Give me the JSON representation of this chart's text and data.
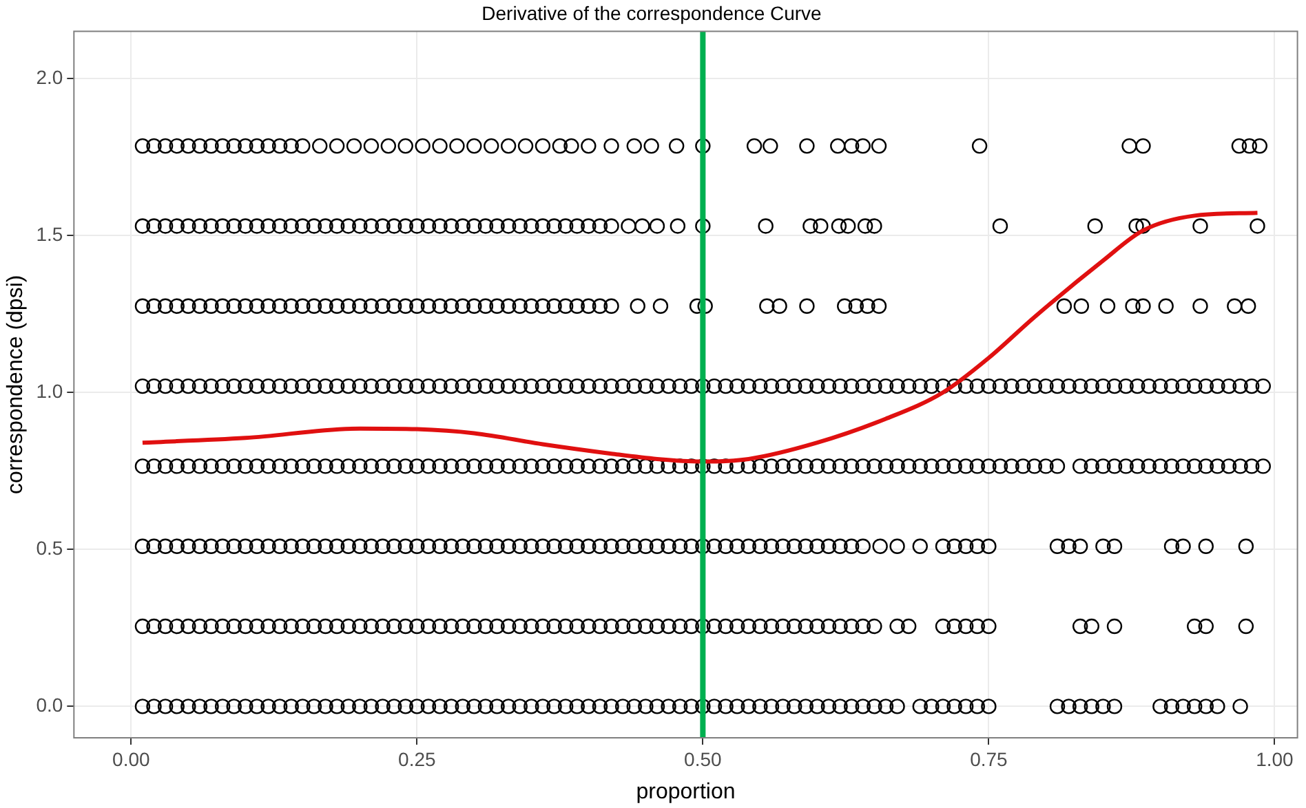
{
  "chart_data": {
    "type": "scatter",
    "title": "Derivative of the correspondence Curve",
    "xlabel": "proportion",
    "ylabel": "correspondence (dpsi)",
    "xlim": [
      -0.05,
      1.02
    ],
    "ylim": [
      -0.1,
      2.15
    ],
    "xticks": [
      {
        "value": 0,
        "label": "0.00"
      },
      0.25,
      {
        "value": 0.5,
        "label": "0.50"
      },
      0.75,
      {
        "value": 1,
        "label": "1.00"
      }
    ],
    "yticks": [
      {
        "value": 0,
        "label": "0.0"
      },
      0.5,
      {
        "value": 1,
        "label": "1.0"
      },
      1.5,
      {
        "value": 2,
        "label": "2.0"
      }
    ],
    "grid": true,
    "legend": false,
    "marker": "circle",
    "ref_lines": [
      {
        "axis": "x",
        "value": 0.5,
        "color": "#00b050"
      }
    ],
    "series": [
      {
        "color": "#000000",
        "x": [
          0.01,
          0.02,
          0.03,
          0.04,
          0.05,
          0.06,
          0.07,
          0.08,
          0.09,
          0.1,
          0.11,
          0.12,
          0.13,
          0.14,
          0.15,
          0.16,
          0.17,
          0.18,
          0.19,
          0.2,
          0.21,
          0.22,
          0.23,
          0.24,
          0.25,
          0.26,
          0.27,
          0.28,
          0.29,
          0.3,
          0.31,
          0.32,
          0.33,
          0.34,
          0.35,
          0.36,
          0.37,
          0.38,
          0.39,
          0.4,
          0.41,
          0.42,
          0.43,
          0.44,
          0.45,
          0.46,
          0.47,
          0.48,
          0.49,
          0.5,
          0.51,
          0.52,
          0.53,
          0.54,
          0.55,
          0.56,
          0.57,
          0.58,
          0.59,
          0.6,
          0.61,
          0.62,
          0.63,
          0.64,
          0.65,
          0.66,
          0.67,
          0.69,
          0.7,
          0.71,
          0.72,
          0.73,
          0.74,
          0.75,
          0.81,
          0.82,
          0.83,
          0.84,
          0.85,
          0.86,
          0.9,
          0.91,
          0.92,
          0.93,
          0.94,
          0.95,
          0.97
        ],
        "values": [
          0,
          0,
          0,
          0,
          0,
          0,
          0,
          0,
          0,
          0,
          0,
          0,
          0,
          0,
          0,
          0,
          0,
          0,
          0,
          0,
          0,
          0,
          0,
          0,
          0,
          0,
          0,
          0,
          0,
          0,
          0,
          0,
          0,
          0,
          0,
          0,
          0,
          0,
          0,
          0,
          0,
          0,
          0,
          0,
          0,
          0,
          0,
          0,
          0,
          0,
          0,
          0,
          0,
          0,
          0,
          0,
          0,
          0,
          0,
          0,
          0,
          0,
          0,
          0,
          0,
          0,
          0,
          0,
          0,
          0,
          0,
          0,
          0,
          0,
          0,
          0,
          0,
          0,
          0,
          0,
          0,
          0,
          0,
          0,
          0,
          0,
          0
        ]
      },
      {
        "color": "#000000",
        "x": [
          0.01,
          0.02,
          0.03,
          0.04,
          0.05,
          0.06,
          0.07,
          0.08,
          0.09,
          0.1,
          0.11,
          0.12,
          0.13,
          0.14,
          0.15,
          0.16,
          0.17,
          0.18,
          0.19,
          0.2,
          0.21,
          0.22,
          0.23,
          0.24,
          0.25,
          0.26,
          0.27,
          0.28,
          0.29,
          0.3,
          0.31,
          0.32,
          0.33,
          0.34,
          0.35,
          0.36,
          0.37,
          0.38,
          0.39,
          0.4,
          0.41,
          0.42,
          0.43,
          0.44,
          0.45,
          0.46,
          0.47,
          0.48,
          0.49,
          0.5,
          0.51,
          0.52,
          0.53,
          0.54,
          0.55,
          0.56,
          0.57,
          0.58,
          0.59,
          0.6,
          0.61,
          0.62,
          0.63,
          0.64,
          0.65,
          0.67,
          0.68,
          0.71,
          0.72,
          0.73,
          0.74,
          0.75,
          0.83,
          0.84,
          0.86,
          0.93,
          0.94,
          0.975
        ],
        "values": [
          0.255,
          0.255,
          0.255,
          0.255,
          0.255,
          0.255,
          0.255,
          0.255,
          0.255,
          0.255,
          0.255,
          0.255,
          0.255,
          0.255,
          0.255,
          0.255,
          0.255,
          0.255,
          0.255,
          0.255,
          0.255,
          0.255,
          0.255,
          0.255,
          0.255,
          0.255,
          0.255,
          0.255,
          0.255,
          0.255,
          0.255,
          0.255,
          0.255,
          0.255,
          0.255,
          0.255,
          0.255,
          0.255,
          0.255,
          0.255,
          0.255,
          0.255,
          0.255,
          0.255,
          0.255,
          0.255,
          0.255,
          0.255,
          0.255,
          0.255,
          0.255,
          0.255,
          0.255,
          0.255,
          0.255,
          0.255,
          0.255,
          0.255,
          0.255,
          0.255,
          0.255,
          0.255,
          0.255,
          0.255,
          0.255,
          0.255,
          0.255,
          0.255,
          0.255,
          0.255,
          0.255,
          0.255,
          0.255,
          0.255,
          0.255,
          0.255,
          0.255,
          0.255
        ]
      },
      {
        "color": "#000000",
        "x": [
          0.01,
          0.02,
          0.03,
          0.04,
          0.05,
          0.06,
          0.07,
          0.08,
          0.09,
          0.1,
          0.11,
          0.12,
          0.13,
          0.14,
          0.15,
          0.16,
          0.17,
          0.18,
          0.19,
          0.2,
          0.21,
          0.22,
          0.23,
          0.24,
          0.25,
          0.26,
          0.27,
          0.28,
          0.29,
          0.3,
          0.31,
          0.32,
          0.33,
          0.34,
          0.35,
          0.36,
          0.37,
          0.38,
          0.39,
          0.4,
          0.41,
          0.42,
          0.43,
          0.44,
          0.45,
          0.46,
          0.47,
          0.48,
          0.49,
          0.5,
          0.51,
          0.52,
          0.53,
          0.54,
          0.55,
          0.56,
          0.57,
          0.58,
          0.59,
          0.6,
          0.61,
          0.62,
          0.63,
          0.64,
          0.655,
          0.67,
          0.69,
          0.71,
          0.72,
          0.73,
          0.74,
          0.75,
          0.81,
          0.82,
          0.83,
          0.85,
          0.86,
          0.91,
          0.92,
          0.94,
          0.975
        ],
        "values": [
          0.51,
          0.51,
          0.51,
          0.51,
          0.51,
          0.51,
          0.51,
          0.51,
          0.51,
          0.51,
          0.51,
          0.51,
          0.51,
          0.51,
          0.51,
          0.51,
          0.51,
          0.51,
          0.51,
          0.51,
          0.51,
          0.51,
          0.51,
          0.51,
          0.51,
          0.51,
          0.51,
          0.51,
          0.51,
          0.51,
          0.51,
          0.51,
          0.51,
          0.51,
          0.51,
          0.51,
          0.51,
          0.51,
          0.51,
          0.51,
          0.51,
          0.51,
          0.51,
          0.51,
          0.51,
          0.51,
          0.51,
          0.51,
          0.51,
          0.51,
          0.51,
          0.51,
          0.51,
          0.51,
          0.51,
          0.51,
          0.51,
          0.51,
          0.51,
          0.51,
          0.51,
          0.51,
          0.51,
          0.51,
          0.51,
          0.51,
          0.51,
          0.51,
          0.51,
          0.51,
          0.51,
          0.51,
          0.51,
          0.51,
          0.51,
          0.51,
          0.51,
          0.51,
          0.51,
          0.51,
          0.51
        ]
      },
      {
        "color": "#000000",
        "x": [
          0.01,
          0.02,
          0.03,
          0.04,
          0.05,
          0.06,
          0.07,
          0.08,
          0.09,
          0.1,
          0.11,
          0.12,
          0.13,
          0.14,
          0.15,
          0.16,
          0.17,
          0.18,
          0.19,
          0.2,
          0.21,
          0.22,
          0.23,
          0.24,
          0.25,
          0.26,
          0.27,
          0.28,
          0.29,
          0.3,
          0.31,
          0.32,
          0.33,
          0.34,
          0.35,
          0.36,
          0.37,
          0.38,
          0.39,
          0.4,
          0.41,
          0.42,
          0.43,
          0.44,
          0.45,
          0.46,
          0.47,
          0.48,
          0.49,
          0.5,
          0.51,
          0.52,
          0.53,
          0.54,
          0.55,
          0.56,
          0.57,
          0.58,
          0.59,
          0.6,
          0.61,
          0.62,
          0.63,
          0.64,
          0.65,
          0.66,
          0.67,
          0.68,
          0.69,
          0.7,
          0.71,
          0.72,
          0.73,
          0.74,
          0.75,
          0.76,
          0.77,
          0.78,
          0.79,
          0.8,
          0.81,
          0.83,
          0.84,
          0.85,
          0.86,
          0.87,
          0.88,
          0.89,
          0.9,
          0.91,
          0.92,
          0.93,
          0.94,
          0.95,
          0.96,
          0.97,
          0.98,
          0.99
        ],
        "values": [
          0.765,
          0.765,
          0.765,
          0.765,
          0.765,
          0.765,
          0.765,
          0.765,
          0.765,
          0.765,
          0.765,
          0.765,
          0.765,
          0.765,
          0.765,
          0.765,
          0.765,
          0.765,
          0.765,
          0.765,
          0.765,
          0.765,
          0.765,
          0.765,
          0.765,
          0.765,
          0.765,
          0.765,
          0.765,
          0.765,
          0.765,
          0.765,
          0.765,
          0.765,
          0.765,
          0.765,
          0.765,
          0.765,
          0.765,
          0.765,
          0.765,
          0.765,
          0.765,
          0.765,
          0.765,
          0.765,
          0.765,
          0.765,
          0.765,
          0.765,
          0.765,
          0.765,
          0.765,
          0.765,
          0.765,
          0.765,
          0.765,
          0.765,
          0.765,
          0.765,
          0.765,
          0.765,
          0.765,
          0.765,
          0.765,
          0.765,
          0.765,
          0.765,
          0.765,
          0.765,
          0.765,
          0.765,
          0.765,
          0.765,
          0.765,
          0.765,
          0.765,
          0.765,
          0.765,
          0.765,
          0.765,
          0.765,
          0.765,
          0.765,
          0.765,
          0.765,
          0.765,
          0.765,
          0.765,
          0.765,
          0.765,
          0.765,
          0.765,
          0.765,
          0.765,
          0.765,
          0.765,
          0.765
        ]
      },
      {
        "color": "#000000",
        "x": [
          0.01,
          0.02,
          0.03,
          0.04,
          0.05,
          0.06,
          0.07,
          0.08,
          0.09,
          0.1,
          0.11,
          0.12,
          0.13,
          0.14,
          0.15,
          0.16,
          0.17,
          0.18,
          0.19,
          0.2,
          0.21,
          0.22,
          0.23,
          0.24,
          0.25,
          0.26,
          0.27,
          0.28,
          0.29,
          0.3,
          0.31,
          0.32,
          0.33,
          0.34,
          0.35,
          0.36,
          0.37,
          0.38,
          0.39,
          0.4,
          0.41,
          0.42,
          0.43,
          0.44,
          0.45,
          0.46,
          0.47,
          0.48,
          0.49,
          0.5,
          0.51,
          0.52,
          0.53,
          0.54,
          0.55,
          0.56,
          0.57,
          0.58,
          0.59,
          0.6,
          0.61,
          0.62,
          0.63,
          0.64,
          0.65,
          0.66,
          0.67,
          0.68,
          0.69,
          0.7,
          0.71,
          0.72,
          0.73,
          0.74,
          0.75,
          0.76,
          0.77,
          0.78,
          0.79,
          0.8,
          0.81,
          0.82,
          0.83,
          0.84,
          0.85,
          0.86,
          0.87,
          0.88,
          0.89,
          0.9,
          0.91,
          0.92,
          0.93,
          0.94,
          0.95,
          0.96,
          0.97,
          0.98,
          0.99
        ],
        "values": [
          1.02,
          1.02,
          1.02,
          1.02,
          1.02,
          1.02,
          1.02,
          1.02,
          1.02,
          1.02,
          1.02,
          1.02,
          1.02,
          1.02,
          1.02,
          1.02,
          1.02,
          1.02,
          1.02,
          1.02,
          1.02,
          1.02,
          1.02,
          1.02,
          1.02,
          1.02,
          1.02,
          1.02,
          1.02,
          1.02,
          1.02,
          1.02,
          1.02,
          1.02,
          1.02,
          1.02,
          1.02,
          1.02,
          1.02,
          1.02,
          1.02,
          1.02,
          1.02,
          1.02,
          1.02,
          1.02,
          1.02,
          1.02,
          1.02,
          1.02,
          1.02,
          1.02,
          1.02,
          1.02,
          1.02,
          1.02,
          1.02,
          1.02,
          1.02,
          1.02,
          1.02,
          1.02,
          1.02,
          1.02,
          1.02,
          1.02,
          1.02,
          1.02,
          1.02,
          1.02,
          1.02,
          1.02,
          1.02,
          1.02,
          1.02,
          1.02,
          1.02,
          1.02,
          1.02,
          1.02,
          1.02,
          1.02,
          1.02,
          1.02,
          1.02,
          1.02,
          1.02,
          1.02,
          1.02,
          1.02,
          1.02,
          1.02,
          1.02,
          1.02,
          1.02,
          1.02,
          1.02,
          1.02,
          1.02
        ]
      },
      {
        "color": "#000000",
        "x": [
          0.01,
          0.02,
          0.03,
          0.04,
          0.05,
          0.06,
          0.07,
          0.08,
          0.09,
          0.1,
          0.11,
          0.12,
          0.13,
          0.14,
          0.15,
          0.16,
          0.17,
          0.18,
          0.19,
          0.2,
          0.21,
          0.22,
          0.23,
          0.24,
          0.25,
          0.26,
          0.27,
          0.28,
          0.29,
          0.3,
          0.31,
          0.32,
          0.33,
          0.34,
          0.35,
          0.36,
          0.37,
          0.38,
          0.39,
          0.4,
          0.41,
          0.42,
          0.443,
          0.463,
          0.495,
          0.502,
          0.556,
          0.567,
          0.591,
          0.624,
          0.634,
          0.644,
          0.654,
          0.816,
          0.831,
          0.854,
          0.876,
          0.885,
          0.905,
          0.935,
          0.965,
          0.977
        ],
        "values": [
          1.275,
          1.275,
          1.275,
          1.275,
          1.275,
          1.275,
          1.275,
          1.275,
          1.275,
          1.275,
          1.275,
          1.275,
          1.275,
          1.275,
          1.275,
          1.275,
          1.275,
          1.275,
          1.275,
          1.275,
          1.275,
          1.275,
          1.275,
          1.275,
          1.275,
          1.275,
          1.275,
          1.275,
          1.275,
          1.275,
          1.275,
          1.275,
          1.275,
          1.275,
          1.275,
          1.275,
          1.275,
          1.275,
          1.275,
          1.275,
          1.275,
          1.275,
          1.275,
          1.275,
          1.275,
          1.275,
          1.275,
          1.275,
          1.275,
          1.275,
          1.275,
          1.275,
          1.275,
          1.275,
          1.275,
          1.275,
          1.275,
          1.275,
          1.275,
          1.275,
          1.275,
          1.275
        ]
      },
      {
        "color": "#000000",
        "x": [
          0.01,
          0.02,
          0.03,
          0.04,
          0.05,
          0.06,
          0.07,
          0.08,
          0.09,
          0.1,
          0.11,
          0.12,
          0.13,
          0.14,
          0.15,
          0.16,
          0.17,
          0.18,
          0.19,
          0.2,
          0.21,
          0.22,
          0.23,
          0.24,
          0.25,
          0.26,
          0.27,
          0.28,
          0.29,
          0.3,
          0.31,
          0.32,
          0.33,
          0.34,
          0.35,
          0.36,
          0.37,
          0.38,
          0.39,
          0.4,
          0.41,
          0.42,
          0.435,
          0.447,
          0.46,
          0.478,
          0.5,
          0.555,
          0.594,
          0.603,
          0.619,
          0.627,
          0.642,
          0.65,
          0.76,
          0.843,
          0.879,
          0.885,
          0.935,
          0.985
        ],
        "values": [
          1.53,
          1.53,
          1.53,
          1.53,
          1.53,
          1.53,
          1.53,
          1.53,
          1.53,
          1.53,
          1.53,
          1.53,
          1.53,
          1.53,
          1.53,
          1.53,
          1.53,
          1.53,
          1.53,
          1.53,
          1.53,
          1.53,
          1.53,
          1.53,
          1.53,
          1.53,
          1.53,
          1.53,
          1.53,
          1.53,
          1.53,
          1.53,
          1.53,
          1.53,
          1.53,
          1.53,
          1.53,
          1.53,
          1.53,
          1.53,
          1.53,
          1.53,
          1.53,
          1.53,
          1.53,
          1.53,
          1.53,
          1.53,
          1.53,
          1.53,
          1.53,
          1.53,
          1.53,
          1.53,
          1.53,
          1.53,
          1.53,
          1.53,
          1.53,
          1.53
        ]
      },
      {
        "color": "#000000",
        "x": [
          0.01,
          0.02,
          0.03,
          0.04,
          0.05,
          0.06,
          0.07,
          0.08,
          0.09,
          0.1,
          0.11,
          0.12,
          0.13,
          0.14,
          0.15,
          0.165,
          0.18,
          0.195,
          0.21,
          0.225,
          0.24,
          0.255,
          0.27,
          0.285,
          0.3,
          0.315,
          0.33,
          0.345,
          0.36,
          0.375,
          0.385,
          0.4,
          0.42,
          0.44,
          0.455,
          0.477,
          0.5,
          0.545,
          0.559,
          0.591,
          0.618,
          0.63,
          0.64,
          0.654,
          0.742,
          0.873,
          0.885,
          0.969,
          0.978,
          0.987
        ],
        "values": [
          1.785,
          1.785,
          1.785,
          1.785,
          1.785,
          1.785,
          1.785,
          1.785,
          1.785,
          1.785,
          1.785,
          1.785,
          1.785,
          1.785,
          1.785,
          1.785,
          1.785,
          1.785,
          1.785,
          1.785,
          1.785,
          1.785,
          1.785,
          1.785,
          1.785,
          1.785,
          1.785,
          1.785,
          1.785,
          1.785,
          1.785,
          1.785,
          1.785,
          1.785,
          1.785,
          1.785,
          1.785,
          1.785,
          1.785,
          1.785,
          1.785,
          1.785,
          1.785,
          1.785,
          1.785,
          1.785,
          1.785,
          1.785,
          1.785,
          1.785
        ]
      },
      {
        "type": "line",
        "color": "#e01010",
        "marker": "none",
        "x": [
          0.01,
          0.1,
          0.2,
          0.25,
          0.3,
          0.36,
          0.42,
          0.46,
          0.5,
          0.54,
          0.6,
          0.66,
          0.71,
          0.75,
          0.79,
          0.85,
          0.885,
          0.93,
          0.985
        ],
        "values": [
          0.84,
          0.855,
          0.885,
          0.883,
          0.87,
          0.835,
          0.805,
          0.788,
          0.78,
          0.788,
          0.84,
          0.916,
          1.0,
          1.11,
          1.24,
          1.42,
          1.516,
          1.563,
          1.572
        ]
      }
    ]
  }
}
